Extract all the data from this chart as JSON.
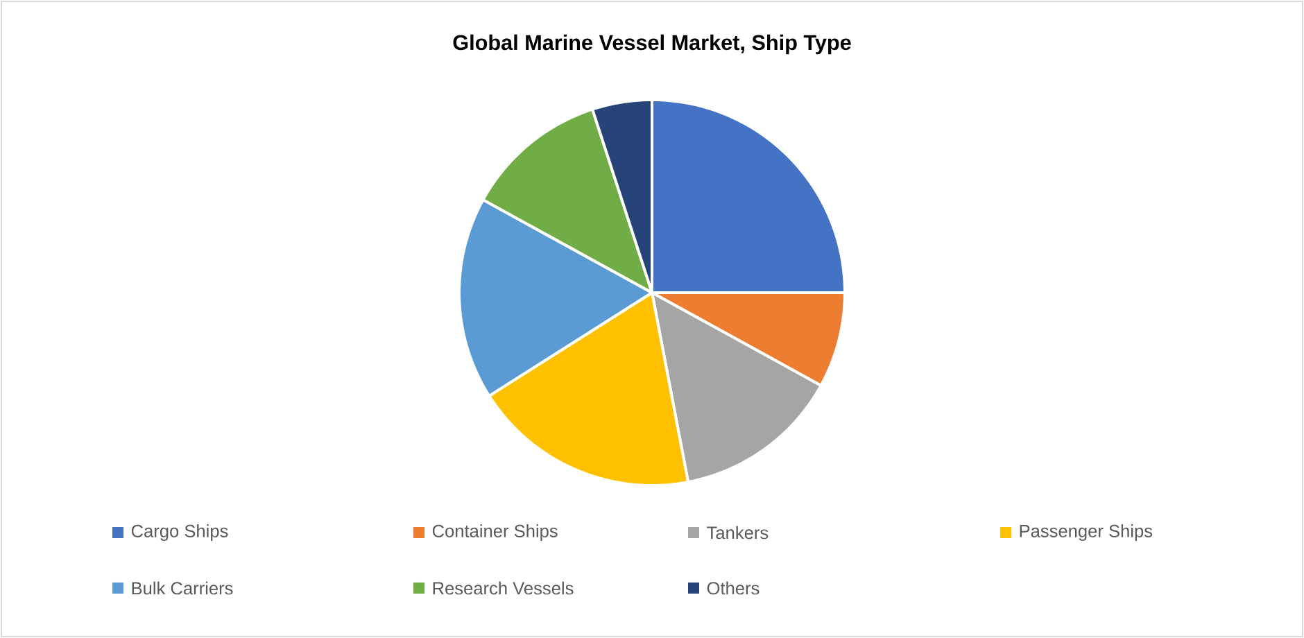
{
  "chart_data": {
    "type": "pie",
    "title": "Global Marine Vessel Market, Ship Type",
    "categories": [
      "Cargo Ships",
      "Container Ships",
      "Tankers",
      "Passenger Ships",
      "Bulk Carriers",
      "Research Vessels",
      "Others"
    ],
    "values": [
      25,
      8,
      14,
      19,
      17,
      12,
      5
    ],
    "colors": [
      "#4472c4",
      "#ed7d31",
      "#a5a5a5",
      "#ffc000",
      "#5b9bd5",
      "#70ad47",
      "#264478"
    ],
    "legend": "bottom"
  }
}
